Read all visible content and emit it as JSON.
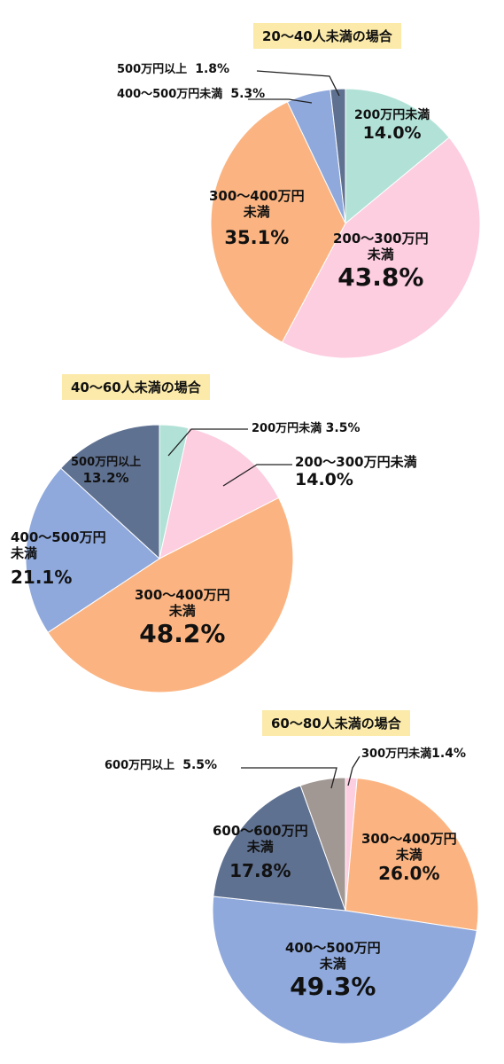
{
  "chart_data": [
    {
      "type": "pie",
      "title": "20〜40人未満の場合",
      "slices": [
        {
          "name": "200万円未満",
          "value": 14.0,
          "label": "14.0%",
          "color": "#b2e2d7"
        },
        {
          "name": "200〜300万円\n未満",
          "value": 43.8,
          "label": "43.8%",
          "color": "#fdcde0"
        },
        {
          "name": "300〜400万円\n未満",
          "value": 35.1,
          "label": "35.1%",
          "color": "#fbb481"
        },
        {
          "name": "400〜500万円未満",
          "value": 5.3,
          "label": "5.3%",
          "color": "#8fa9dc"
        },
        {
          "name": "500万円以上",
          "value": 1.8,
          "label": "1.8%",
          "color": "#5f7191"
        }
      ]
    },
    {
      "type": "pie",
      "title": "40〜60人未満の場合",
      "slices": [
        {
          "name": "200万円未満",
          "value": 3.5,
          "label": "3.5%",
          "color": "#b2e2d7"
        },
        {
          "name": "200〜300万円未満",
          "value": 14.0,
          "label": "14.0%",
          "color": "#fdcde0"
        },
        {
          "name": "300〜400万円\n未満",
          "value": 48.2,
          "label": "48.2%",
          "color": "#fbb481"
        },
        {
          "name": "400〜500万円\n未満",
          "value": 21.1,
          "label": "21.1%",
          "color": "#8fa9dc"
        },
        {
          "name": "500万円以上",
          "value": 13.2,
          "label": "13.2%",
          "color": "#5f7191"
        }
      ]
    },
    {
      "type": "pie",
      "title": "60〜80人未満の場合",
      "slices": [
        {
          "name": "300万円未満",
          "value": 1.4,
          "label": "1.4%",
          "color": "#fdcde0"
        },
        {
          "name": "300〜400万円\n未満",
          "value": 26.0,
          "label": "26.0%",
          "color": "#fbb481"
        },
        {
          "name": "400〜500万円\n未満",
          "value": 49.3,
          "label": "49.3%",
          "color": "#8fa9dc"
        },
        {
          "name": "600〜600万円\n未満",
          "value": 17.8,
          "label": "17.8%",
          "color": "#5f7191"
        },
        {
          "name": "600万円以上",
          "value": 5.5,
          "label": "5.5%",
          "color": "#a19793"
        }
      ]
    }
  ]
}
